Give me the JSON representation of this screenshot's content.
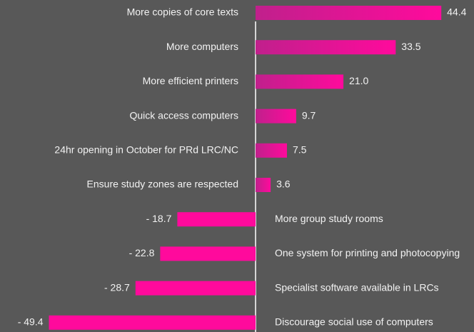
{
  "chart_data": {
    "type": "bar",
    "orientation": "horizontal",
    "categories": [
      "More copies of core texts",
      "More computers",
      "More efficient printers",
      "Quick access computers",
      "24hr opening in October for PRd LRC/NC",
      "Ensure study zones are respected",
      "More group study rooms",
      "One system for printing and photocopying",
      "Specialist software available in LRCs",
      "Discourage social use of computers"
    ],
    "values": [
      44.4,
      33.5,
      21.0,
      9.7,
      7.5,
      3.6,
      -18.7,
      -22.8,
      -28.7,
      -49.4
    ],
    "value_labels": [
      "44.4",
      "33.5",
      "21.0",
      "9.7",
      "7.5",
      "3.6",
      "- 18.7",
      "- 22.8",
      "- 28.7",
      "- 49.4"
    ],
    "color": "#ff0a9c",
    "xlim": [
      -50,
      50
    ]
  }
}
